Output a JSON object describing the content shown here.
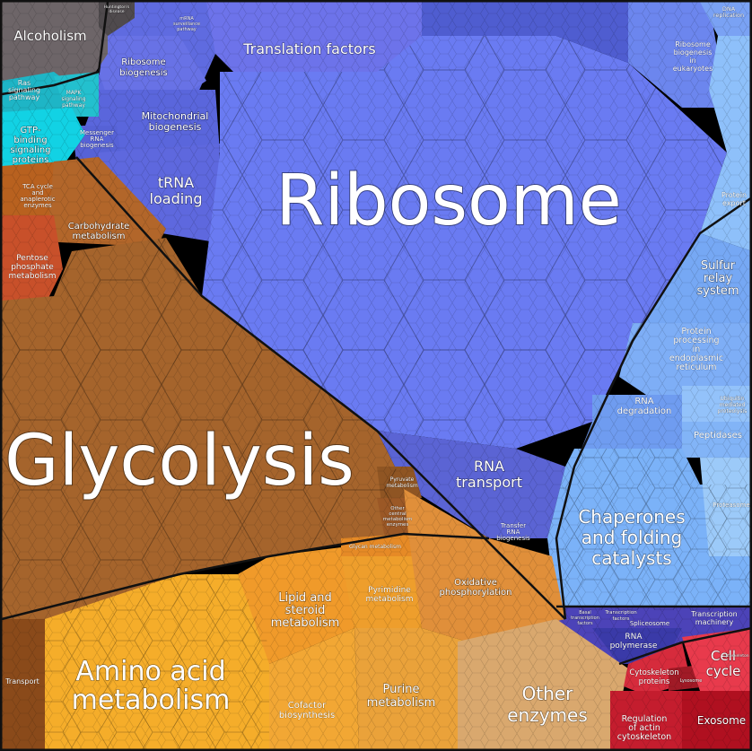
{
  "colors": {
    "ribosome": "#6a7bf2",
    "blue_dark": "#5b63d8",
    "blue_light": "#7fb0f7",
    "blue_lighter": "#a7cbf8",
    "brown": "#a5642c",
    "orange": "#e08f3a",
    "yellow": "#f5ad2a",
    "gold": "#eaa23a",
    "tan": "#d9a86e",
    "red": "#d62b3c",
    "gray": "#6d6568",
    "cyan": "#19c6d8",
    "indigo": "#4c43b8"
  },
  "labels": {
    "ribosome": "Ribosome",
    "glycolysis": "Glycolysis",
    "amino_acid_1": "Amino acid",
    "amino_acid_2": "metabolism",
    "translation_factors": "Translation factors",
    "alcoholism": "Alcoholism",
    "ribosome_biogenesis_1": "Ribosome",
    "ribosome_biogenesis_2": "biogenesis",
    "mito_1": "Mitochondrial",
    "mito_2": "biogenesis",
    "trna_1": "tRNA",
    "trna_2": "loading",
    "messenger_1": "Messenger",
    "messenger_2": "RNA",
    "messenger_3": "biogenesis",
    "ras_1": "Ras",
    "ras_2": "signaling",
    "ras_3": "pathway",
    "mapk_1": "MAPK",
    "mapk_2": "signaling",
    "mapk_3": "pathway",
    "gtp_1": "GTP-",
    "gtp_2": "binding",
    "gtp_3": "signaling",
    "gtp_4": "proteins",
    "tca_1": "TCA cycle",
    "tca_2": "and",
    "tca_3": "anaplerotic",
    "tca_4": "enzymes",
    "carb_1": "Carbohydrate",
    "carb_2": "metabolism",
    "pentose_1": "Pentose",
    "pentose_2": "phosphate",
    "pentose_3": "metabolism",
    "rna_transport_1": "RNA",
    "rna_transport_2": "transport",
    "transfer_rna_1": "Transfer",
    "transfer_rna_2": "RNA",
    "transfer_rna_3": "biogenesis",
    "pyruvate_1": "Pyruvate",
    "pyruvate_2": "metabolism",
    "other_central_1": "Other",
    "other_central_2": "central",
    "other_central_3": "metabolism",
    "other_central_4": "enzymes",
    "glycan": "Glycan metabolism",
    "lipid_1": "Lipid and",
    "lipid_2": "steroid",
    "lipid_3": "metabolism",
    "pyrimidine_1": "Pyrimidine",
    "pyrimidine_2": "metabolism",
    "oxphos_1": "Oxidative",
    "oxphos_2": "phosphorylation",
    "purine_1": "Purine",
    "purine_2": "metabolism",
    "cofactor_1": "Cofactor",
    "cofactor_2": "biosynthesis",
    "other_enzymes_1": "Other",
    "other_enzymes_2": "enzymes",
    "transport": "Transport",
    "chaperones_1": "Chaperones",
    "chaperones_2": "and folding",
    "chaperones_3": "catalysts",
    "sulfur_1": "Sulfur",
    "sulfur_2": "relay",
    "sulfur_3": "system",
    "protein_processing_1": "Protein",
    "protein_processing_2": "processing",
    "protein_processing_3": "in",
    "protein_processing_4": "endoplasmic",
    "protein_processing_5": "reticulum",
    "rna_degradation_1": "RNA",
    "rna_degradation_2": "degradation",
    "ubiquitin_1": "Ubiquitin",
    "ubiquitin_2": "mediated",
    "ubiquitin_3": "proteolysis",
    "peptidases": "Peptidases",
    "proteasome": "Proteasome",
    "protein_export_1": "Protein",
    "protein_export_2": "export",
    "ribosome_biogenesis_euk_1": "Ribosome",
    "ribosome_biogenesis_euk_2": "biogenesis",
    "ribosome_biogenesis_euk_3": "in",
    "ribosome_biogenesis_euk_4": "eukaryotes",
    "dna_replication_1": "DNA",
    "dna_replication_2": "replication",
    "basal_tf_1": "Basal",
    "basal_tf_2": "transcription",
    "basal_tf_3": "factors",
    "transcription_factors_1": "Transcription",
    "transcription_factors_2": "factors",
    "spliceosome": "Spliceosome",
    "transcription_machinery_1": "Transcription",
    "transcription_machinery_2": "machinery",
    "rna_polymerase_1": "RNA",
    "rna_polymerase_2": "polymerase",
    "cell_cycle_1": "Cell",
    "cell_cycle_2": "cycle",
    "cytoskeleton_1": "Cytoskeleton",
    "cytoskeleton_2": "proteins",
    "lysosome": "Lysosome",
    "regulation_1": "Regulation",
    "regulation_2": "of actin",
    "regulation_3": "cytoskeleton",
    "exosome": "Exosome",
    "cytoskeleton_small": "Cytoskeleton",
    "huntington_1": "Huntington's",
    "huntington_2": "disease",
    "mrna_surveillance_1": "mRNA",
    "mrna_surveillance_2": "surveillance",
    "mrna_surveillance_3": "pathway"
  }
}
